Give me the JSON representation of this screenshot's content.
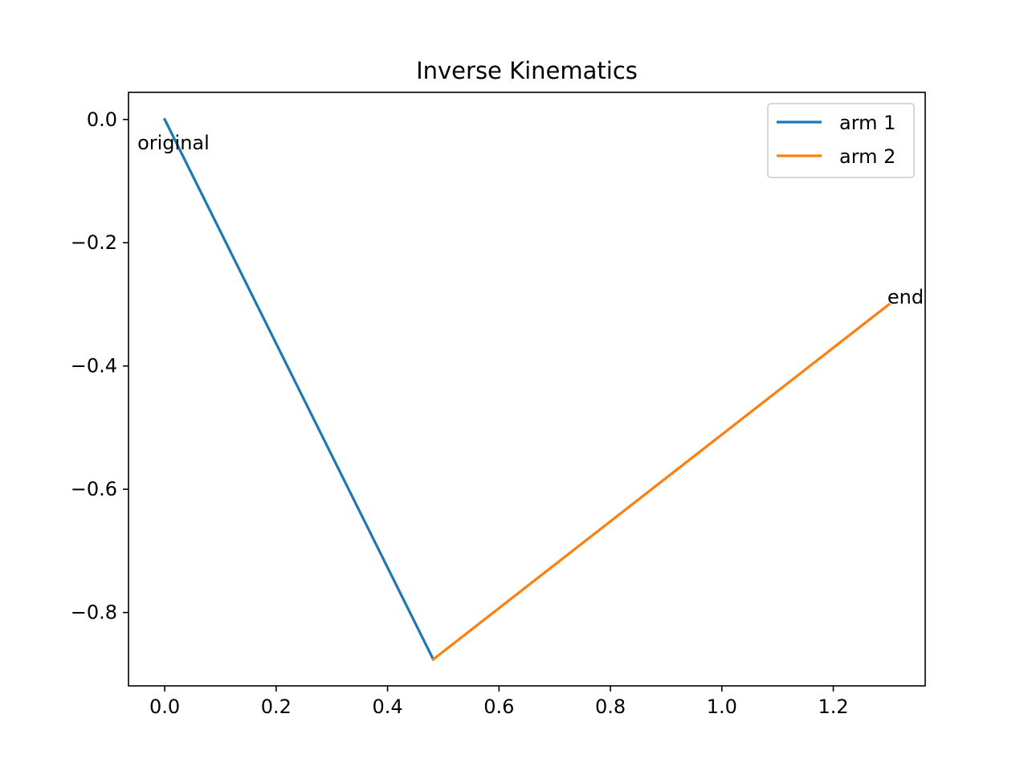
{
  "chart_data": {
    "type": "line",
    "title": "Inverse Kinematics",
    "xlabel": "",
    "ylabel": "",
    "xlim": [
      -0.065,
      1.365
    ],
    "ylim": [
      -0.919,
      0.044
    ],
    "xticks": [
      0.0,
      0.2,
      0.4,
      0.6,
      0.8,
      1.0,
      1.2
    ],
    "xtick_labels": [
      "0.0",
      "0.2",
      "0.4",
      "0.6",
      "0.8",
      "1.0",
      "1.2"
    ],
    "yticks": [
      0.0,
      -0.2,
      -0.4,
      -0.6,
      -0.8
    ],
    "ytick_labels": [
      "0.0",
      "−0.2",
      "−0.4",
      "−0.6",
      "−0.8"
    ],
    "grid": false,
    "legend_position": "top-right",
    "series": [
      {
        "name": "arm 1",
        "color": "#1f77b4",
        "x": [
          0.0,
          0.482
        ],
        "y": [
          0.0,
          -0.876
        ]
      },
      {
        "name": "arm 2",
        "color": "#ff7f0e",
        "x": [
          0.482,
          1.3
        ],
        "y": [
          -0.876,
          -0.3
        ]
      }
    ],
    "annotations": [
      {
        "text": "original",
        "x": 0.0,
        "y": 0.0
      },
      {
        "text": "end",
        "x": 1.3,
        "y": -0.3
      }
    ]
  }
}
